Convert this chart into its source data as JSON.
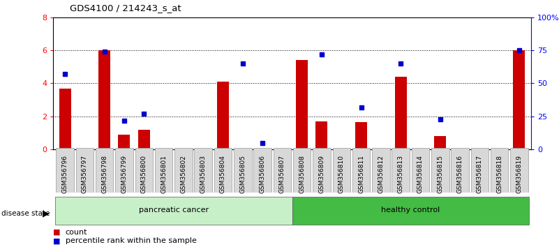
{
  "title": "GDS4100 / 214243_s_at",
  "samples": [
    "GSM356796",
    "GSM356797",
    "GSM356798",
    "GSM356799",
    "GSM356800",
    "GSM356801",
    "GSM356802",
    "GSM356803",
    "GSM356804",
    "GSM356805",
    "GSM356806",
    "GSM356807",
    "GSM356808",
    "GSM356809",
    "GSM356810",
    "GSM356811",
    "GSM356812",
    "GSM356813",
    "GSM356814",
    "GSM356815",
    "GSM356816",
    "GSM356817",
    "GSM356818",
    "GSM356819"
  ],
  "red_bars": [
    3.7,
    0.0,
    6.0,
    0.9,
    1.2,
    0.0,
    0.0,
    0.0,
    4.1,
    0.05,
    0.0,
    0.0,
    5.4,
    1.7,
    0.0,
    1.65,
    0.0,
    4.4,
    0.0,
    0.8,
    0.0,
    0.0,
    0.0,
    6.0
  ],
  "percentile_pct": [
    57,
    null,
    74,
    22,
    27,
    null,
    null,
    null,
    null,
    65,
    5,
    null,
    null,
    72,
    null,
    32,
    null,
    65,
    null,
    23,
    null,
    null,
    null,
    75
  ],
  "bar_color": "#cc0000",
  "dot_color": "#0000cc",
  "pancreatic_color": "#c8f0c8",
  "healthy_color": "#44bb44",
  "pancreatic_n": 12,
  "healthy_n": 12
}
